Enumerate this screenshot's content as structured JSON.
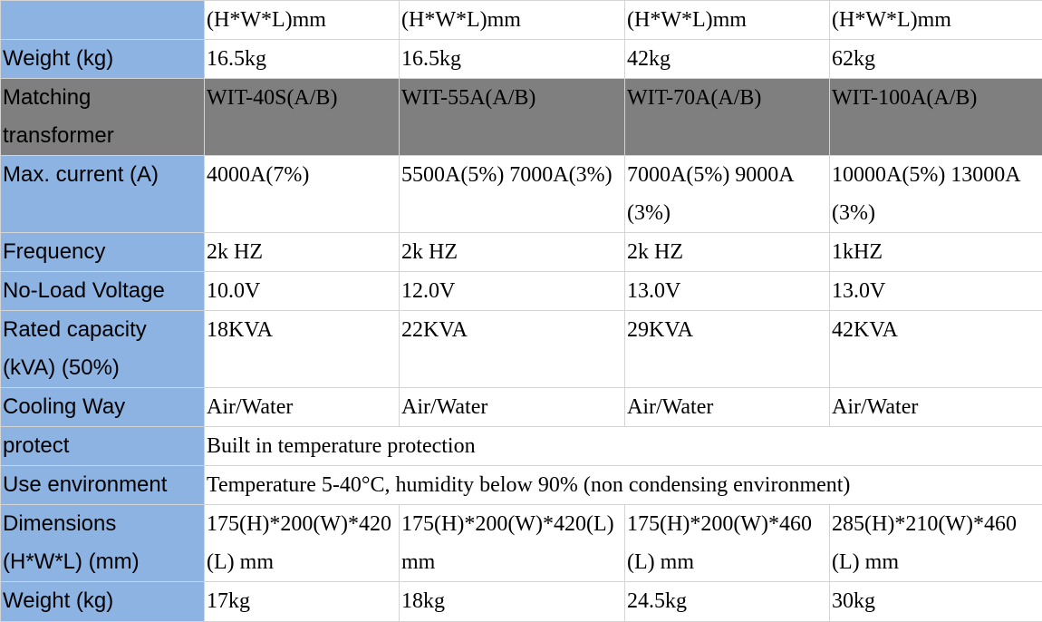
{
  "rows": {
    "size_header": {
      "label": "",
      "c1": "(H*W*L)mm",
      "c2": "(H*W*L)mm",
      "c3": "(H*W*L)mm",
      "c4": "(H*W*L)mm"
    },
    "weight_a": {
      "label": "Weight (kg)",
      "c1": "16.5kg",
      "c2": "16.5kg",
      "c3": "42kg",
      "c4": "62kg"
    },
    "matching_transformer": {
      "label": "Matching transformer",
      "c1": "WIT-40S(A/B)",
      "c2": "WIT-55A(A/B)",
      "c3": "WIT-70A(A/B)",
      "c4": "WIT-100A(A/B)"
    },
    "max_current": {
      "label": "Max. current (A)",
      "c1": "4000A(7%)",
      "c2": "5500A(5%)\n7000A(3%)",
      "c3": "7000A(5%)\n9000A(3%)",
      "c4": "10000A(5%)\n13000A(3%)"
    },
    "frequency": {
      "label": "Frequency",
      "c1": "2k HZ",
      "c2": "2k HZ",
      "c3": "2k HZ",
      "c4": "1kHZ"
    },
    "no_load_voltage": {
      "label": "No-Load Voltage",
      "c1": "10.0V",
      "c2": "12.0V",
      "c3": "13.0V",
      "c4": "13.0V"
    },
    "rated_capacity": {
      "label": "Rated capacity (kVA) (50%)",
      "c1": "18KVA",
      "c2": "22KVA",
      "c3": "29KVA",
      "c4": "42KVA"
    },
    "cooling_way": {
      "label": "Cooling Way",
      "c1": "Air/Water",
      "c2": "Air/Water",
      "c3": "Air/Water",
      "c4": "Air/Water"
    },
    "protect": {
      "label": "protect",
      "value": "Built in temperature protection"
    },
    "use_environment": {
      "label": "Use environment",
      "value": "Temperature 5-40°C, humidity below 90% (non condensing environment)"
    },
    "dimensions": {
      "label": "Dimensions (H*W*L) (mm)",
      "c1": "175(H)*200(W)*420(L) mm",
      "c2": "175(H)*200(W)*420(L) mm",
      "c3": "175(H)*200(W)*460(L) mm",
      "c4": "285(H)*210(W)*460(L) mm"
    },
    "weight_b": {
      "label": "Weight (kg)",
      "c1": "17kg",
      "c2": "18kg",
      "c3": "24.5kg",
      "c4": "30kg"
    }
  }
}
